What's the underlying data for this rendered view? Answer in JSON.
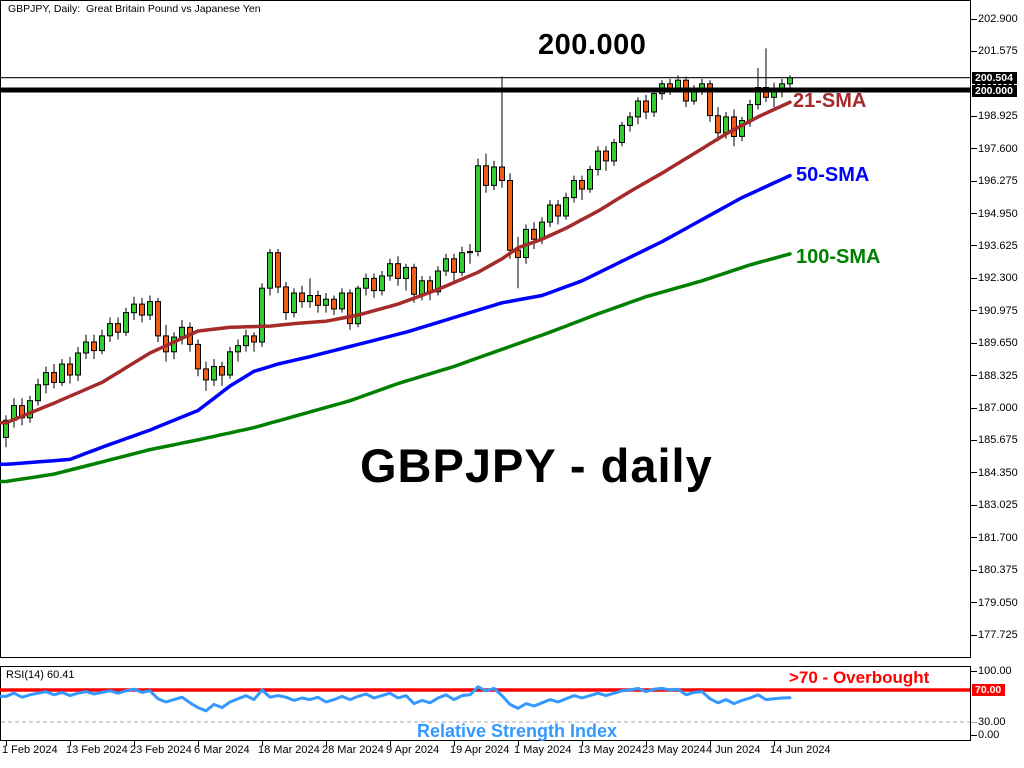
{
  "window": {
    "title": "GBPJPY, Daily:  Great Britain Pound vs Japanese Yen"
  },
  "annotations": {
    "level_label": "200.000",
    "symbol_label": "GBPJPY - daily",
    "sma21_label": "21-SMA",
    "sma50_label": "50-SMA",
    "sma100_label": "100-SMA",
    "overbought_label": ">70 - Overbought",
    "rsi_title_label": "Relative Strength Index"
  },
  "colors": {
    "bull": "#32CD32",
    "bear": "#EE5D18",
    "wick": "#000000",
    "sma21": "#A52A2A",
    "sma50": "#0000FF",
    "sma100": "#008000",
    "rsi_line": "#3399FF",
    "overbought": "#FF0000",
    "oversold_dash": "#AAAAAA",
    "level_line": "#000000",
    "current_price_line": "#222222",
    "price_tag_bg": "#000000",
    "rsi_tag_bg": "#FF0000"
  },
  "price_axis": {
    "current_price_tag": "200.504",
    "level_tag": "200.000",
    "ticks": [
      {
        "label": "202.900",
        "v": 202.9
      },
      {
        "label": "201.575",
        "v": 201.575
      },
      {
        "label": "198.925",
        "v": 198.925
      },
      {
        "label": "197.600",
        "v": 197.6
      },
      {
        "label": "196.275",
        "v": 196.275
      },
      {
        "label": "194.950",
        "v": 194.95
      },
      {
        "label": "193.625",
        "v": 193.625
      },
      {
        "label": "192.300",
        "v": 192.3
      },
      {
        "label": "190.975",
        "v": 190.975
      },
      {
        "label": "189.650",
        "v": 189.65
      },
      {
        "label": "188.325",
        "v": 188.325
      },
      {
        "label": "187.000",
        "v": 187.0
      },
      {
        "label": "185.675",
        "v": 185.675
      },
      {
        "label": "184.350",
        "v": 184.35
      },
      {
        "label": "183.025",
        "v": 183.025
      },
      {
        "label": "181.700",
        "v": 181.7
      },
      {
        "label": "180.375",
        "v": 180.375
      },
      {
        "label": "179.050",
        "v": 179.05
      },
      {
        "label": "177.725",
        "v": 177.725
      }
    ]
  },
  "time_axis": {
    "ticks": [
      {
        "label": "1 Feb 2024",
        "i": 0
      },
      {
        "label": "13 Feb 2024",
        "i": 8
      },
      {
        "label": "23 Feb 2024",
        "i": 16
      },
      {
        "label": "6 Mar 2024",
        "i": 24
      },
      {
        "label": "18 Mar 2024",
        "i": 32
      },
      {
        "label": "28 Mar 2024",
        "i": 40
      },
      {
        "label": "9 Apr 2024",
        "i": 48
      },
      {
        "label": "19 Apr 2024",
        "i": 56
      },
      {
        "label": "1 May 2024",
        "i": 64
      },
      {
        "label": "13 May 2024",
        "i": 72
      },
      {
        "label": "23 May 2024",
        "i": 80
      },
      {
        "label": "4 Jun 2024",
        "i": 88
      },
      {
        "label": "14 Jun 2024",
        "i": 96
      }
    ]
  },
  "rsi_panel": {
    "indicator_label": "RSI(14) 60.41",
    "tag": {
      "label": "70.00",
      "v": 70
    },
    "ticks": [
      {
        "label": "100.00",
        "v": 100
      },
      {
        "label": "30.00",
        "v": 30
      },
      {
        "label": "0.00",
        "v": 0
      }
    ],
    "overbought_level": 70,
    "oversold_level": 30
  },
  "chart_data": {
    "type": "candlestick",
    "title": "GBPJPY - daily",
    "symbol": "GBPJPY",
    "timeframe": "Daily",
    "ylim": [
      177.725,
      202.9
    ],
    "current_price": 200.504,
    "hline": 200.0,
    "candles": [
      [
        "Feb 1",
        185.8,
        186.7,
        185.4,
        186.5
      ],
      [
        "Feb 2",
        186.5,
        187.4,
        186.2,
        187.1
      ],
      [
        "Feb 5",
        187.1,
        187.4,
        186.3,
        186.6
      ],
      [
        "Feb 6",
        186.6,
        187.5,
        186.4,
        187.3
      ],
      [
        "Feb 7",
        187.3,
        188.2,
        187.1,
        187.95
      ],
      [
        "Feb 8",
        187.95,
        188.7,
        187.6,
        188.45
      ],
      [
        "Feb 9",
        188.45,
        188.8,
        187.8,
        188.05
      ],
      [
        "Feb 12",
        188.05,
        189.0,
        187.9,
        188.8
      ],
      [
        "Feb 13",
        188.8,
        189.1,
        188.0,
        188.35
      ],
      [
        "Feb 14",
        188.35,
        189.5,
        188.1,
        189.25
      ],
      [
        "Feb 15",
        189.25,
        190.0,
        189.0,
        189.7
      ],
      [
        "Feb 16",
        189.7,
        190.0,
        189.0,
        189.35
      ],
      [
        "Feb 19",
        189.35,
        190.2,
        189.2,
        189.95
      ],
      [
        "Feb 20",
        189.95,
        190.7,
        189.7,
        190.45
      ],
      [
        "Feb 21",
        190.45,
        190.7,
        189.8,
        190.1
      ],
      [
        "Feb 22",
        190.1,
        191.1,
        189.95,
        190.9
      ],
      [
        "Feb 23",
        190.9,
        191.55,
        190.6,
        191.25
      ],
      [
        "Feb 26",
        191.25,
        191.5,
        190.5,
        190.8
      ],
      [
        "Feb 27",
        190.8,
        191.6,
        190.6,
        191.35
      ],
      [
        "Feb 28",
        191.35,
        191.5,
        189.7,
        189.95
      ],
      [
        "Feb 29",
        189.95,
        190.4,
        188.9,
        189.3
      ],
      [
        "Mar 1",
        189.3,
        190.1,
        189.0,
        189.9
      ],
      [
        "Mar 4",
        189.9,
        190.6,
        189.6,
        190.3
      ],
      [
        "Mar 5",
        190.3,
        190.5,
        189.3,
        189.6
      ],
      [
        "Mar 6",
        189.6,
        189.8,
        188.3,
        188.6
      ],
      [
        "Mar 7",
        188.6,
        188.9,
        187.7,
        188.15
      ],
      [
        "Mar 8",
        188.15,
        189.0,
        187.9,
        188.7
      ],
      [
        "Mar 11",
        188.7,
        188.9,
        187.9,
        188.35
      ],
      [
        "Mar 12",
        188.35,
        189.5,
        188.2,
        189.3
      ],
      [
        "Mar 13",
        189.3,
        189.8,
        188.9,
        189.55
      ],
      [
        "Mar 14",
        189.55,
        190.2,
        189.3,
        189.95
      ],
      [
        "Mar 15",
        189.95,
        190.1,
        189.3,
        189.7
      ],
      [
        "Mar 18",
        189.7,
        192.1,
        189.5,
        191.9
      ],
      [
        "Mar 19",
        191.9,
        193.5,
        191.6,
        193.35
      ],
      [
        "Mar 20",
        193.35,
        193.5,
        191.7,
        191.95
      ],
      [
        "Mar 21",
        191.95,
        192.15,
        190.6,
        190.9
      ],
      [
        "Mar 22",
        190.9,
        191.9,
        190.7,
        191.7
      ],
      [
        "Mar 25",
        191.7,
        192.0,
        191.1,
        191.35
      ],
      [
        "Mar 26",
        191.35,
        192.3,
        191.1,
        191.6
      ],
      [
        "Mar 27",
        191.6,
        191.8,
        190.9,
        191.2
      ],
      [
        "Mar 28",
        191.2,
        191.7,
        190.9,
        191.45
      ],
      [
        "Mar 29",
        191.45,
        191.6,
        190.8,
        191.05
      ],
      [
        "Apr 1",
        191.05,
        191.9,
        190.9,
        191.7
      ],
      [
        "Apr 2",
        191.7,
        191.85,
        190.2,
        190.45
      ],
      [
        "Apr 3",
        190.45,
        192.0,
        190.3,
        191.9
      ],
      [
        "Apr 4",
        191.9,
        192.5,
        191.6,
        192.3
      ],
      [
        "Apr 5",
        192.3,
        192.5,
        191.5,
        191.8
      ],
      [
        "Apr 8",
        191.8,
        192.6,
        191.6,
        192.4
      ],
      [
        "Apr 9",
        192.4,
        193.1,
        192.2,
        192.9
      ],
      [
        "Apr 10",
        192.9,
        193.2,
        192.0,
        192.3
      ],
      [
        "Apr 11",
        192.3,
        192.9,
        191.8,
        192.75
      ],
      [
        "Apr 12",
        192.75,
        192.9,
        191.3,
        191.65
      ],
      [
        "Apr 15",
        191.65,
        192.4,
        191.4,
        192.2
      ],
      [
        "Apr 16",
        192.2,
        192.4,
        191.4,
        191.75
      ],
      [
        "Apr 17",
        191.75,
        192.8,
        191.6,
        192.6
      ],
      [
        "Apr 18",
        192.6,
        193.3,
        192.4,
        193.1
      ],
      [
        "Apr 19",
        193.1,
        193.3,
        192.2,
        192.55
      ],
      [
        "Apr 22",
        192.55,
        193.6,
        192.4,
        193.35
      ],
      [
        "Apr 23",
        193.35,
        193.7,
        192.9,
        193.4
      ],
      [
        "Apr 24",
        193.4,
        197.2,
        193.2,
        196.9
      ],
      [
        "Apr 25",
        196.9,
        197.4,
        195.8,
        196.1
      ],
      [
        "Apr 26",
        196.1,
        197.1,
        195.9,
        196.85
      ],
      [
        "Apr 29",
        196.85,
        200.55,
        196.0,
        196.3
      ],
      [
        "Apr 30",
        196.3,
        196.6,
        193.1,
        193.45
      ],
      [
        "May 1",
        193.45,
        194.0,
        191.9,
        193.15
      ],
      [
        "May 2",
        193.15,
        194.5,
        192.9,
        194.3
      ],
      [
        "May 3",
        194.3,
        194.6,
        193.5,
        193.9
      ],
      [
        "May 6",
        193.9,
        194.8,
        193.7,
        194.6
      ],
      [
        "May 7",
        194.6,
        195.5,
        194.4,
        195.3
      ],
      [
        "May 8",
        195.3,
        195.5,
        194.5,
        194.85
      ],
      [
        "May 9",
        194.85,
        195.8,
        194.7,
        195.6
      ],
      [
        "May 10",
        195.6,
        196.5,
        195.4,
        196.3
      ],
      [
        "May 13",
        196.3,
        196.5,
        195.5,
        195.95
      ],
      [
        "May 14",
        195.95,
        196.9,
        195.8,
        196.75
      ],
      [
        "May 15",
        196.75,
        197.7,
        196.5,
        197.5
      ],
      [
        "May 16",
        197.5,
        197.7,
        196.7,
        197.1
      ],
      [
        "May 17",
        197.1,
        198.0,
        196.9,
        197.85
      ],
      [
        "May 20",
        197.85,
        198.7,
        197.7,
        198.55
      ],
      [
        "May 21",
        198.55,
        199.1,
        198.3,
        198.9
      ],
      [
        "May 22",
        198.9,
        199.7,
        198.6,
        199.55
      ],
      [
        "May 23",
        199.55,
        199.8,
        198.8,
        199.1
      ],
      [
        "May 24",
        199.1,
        200.0,
        198.9,
        199.85
      ],
      [
        "May 27",
        199.85,
        200.4,
        199.6,
        200.25
      ],
      [
        "May 28",
        200.25,
        200.45,
        199.8,
        200.05
      ],
      [
        "May 29",
        200.05,
        200.6,
        199.9,
        200.4
      ],
      [
        "May 30",
        200.4,
        200.55,
        199.3,
        199.55
      ],
      [
        "May 31",
        199.55,
        200.2,
        199.4,
        200.0
      ],
      [
        "Jun 3",
        200.0,
        200.45,
        199.8,
        200.25
      ],
      [
        "Jun 4",
        200.25,
        200.4,
        198.7,
        198.95
      ],
      [
        "Jun 5",
        198.95,
        199.3,
        197.9,
        198.25
      ],
      [
        "Jun 6",
        198.25,
        199.1,
        198.0,
        198.9
      ],
      [
        "Jun 7",
        198.9,
        199.2,
        197.7,
        198.1
      ],
      [
        "Jun 10",
        198.1,
        198.9,
        197.9,
        198.75
      ],
      [
        "Jun 11",
        198.75,
        199.6,
        198.5,
        199.4
      ],
      [
        "Jun 12",
        199.4,
        200.9,
        199.2,
        200.1
      ],
      [
        "Jun 13",
        200.1,
        201.7,
        199.5,
        199.7
      ],
      [
        "Jun 14",
        199.7,
        200.3,
        199.3,
        199.95
      ],
      [
        "Jun 17",
        199.95,
        200.45,
        199.7,
        200.25
      ],
      [
        "Jun 18",
        200.25,
        200.6,
        199.9,
        200.504
      ]
    ],
    "sma21": [
      [
        0,
        186.4
      ],
      [
        6,
        187.2
      ],
      [
        12,
        188.05
      ],
      [
        18,
        189.25
      ],
      [
        24,
        190.15
      ],
      [
        28,
        190.3
      ],
      [
        33,
        190.35
      ],
      [
        36,
        190.45
      ],
      [
        40,
        190.55
      ],
      [
        44,
        190.8
      ],
      [
        49,
        191.25
      ],
      [
        54,
        191.85
      ],
      [
        59,
        192.55
      ],
      [
        62,
        193.1
      ],
      [
        64,
        193.55
      ],
      [
        67,
        193.9
      ],
      [
        70,
        194.35
      ],
      [
        74,
        195.05
      ],
      [
        78,
        195.85
      ],
      [
        82,
        196.6
      ],
      [
        86,
        197.4
      ],
      [
        90,
        198.2
      ],
      [
        94,
        198.9
      ],
      [
        98,
        199.5
      ]
    ],
    "sma50": [
      [
        0,
        184.7
      ],
      [
        8,
        184.9
      ],
      [
        12,
        185.4
      ],
      [
        18,
        186.1
      ],
      [
        24,
        186.9
      ],
      [
        28,
        187.9
      ],
      [
        31,
        188.5
      ],
      [
        34,
        188.8
      ],
      [
        38,
        189.1
      ],
      [
        44,
        189.6
      ],
      [
        50,
        190.1
      ],
      [
        56,
        190.7
      ],
      [
        62,
        191.3
      ],
      [
        67,
        191.6
      ],
      [
        72,
        192.2
      ],
      [
        77,
        193.0
      ],
      [
        82,
        193.8
      ],
      [
        87,
        194.7
      ],
      [
        92,
        195.6
      ],
      [
        98,
        196.5
      ]
    ],
    "sma100": [
      [
        0,
        184.0
      ],
      [
        6,
        184.3
      ],
      [
        12,
        184.8
      ],
      [
        18,
        185.3
      ],
      [
        24,
        185.7
      ],
      [
        31,
        186.2
      ],
      [
        37,
        186.75
      ],
      [
        43,
        187.3
      ],
      [
        49,
        188.0
      ],
      [
        56,
        188.7
      ],
      [
        62,
        189.4
      ],
      [
        68,
        190.1
      ],
      [
        74,
        190.85
      ],
      [
        80,
        191.55
      ],
      [
        87,
        192.2
      ],
      [
        93,
        192.85
      ],
      [
        98,
        193.3
      ]
    ],
    "rsi": {
      "period": 14,
      "current": 60.41,
      "overbought": 70,
      "oversold": 30,
      "values": [
        62,
        66,
        61,
        64,
        66,
        68,
        64,
        67,
        63,
        66,
        68,
        65,
        67,
        69,
        66,
        69,
        71,
        67,
        69,
        59,
        55,
        58,
        61,
        54,
        48,
        44,
        52,
        48,
        55,
        59,
        63,
        58,
        70,
        61,
        63,
        61,
        57,
        60,
        58,
        61,
        55,
        58,
        62,
        58,
        62,
        65,
        60,
        63,
        66,
        60,
        63,
        53,
        57,
        54,
        60,
        64,
        58,
        63,
        64,
        74,
        69,
        72,
        63,
        52,
        47,
        53,
        50,
        54,
        58,
        55,
        59,
        63,
        60,
        63,
        66,
        63,
        66,
        69,
        70,
        72,
        68,
        71,
        72,
        70,
        71,
        64,
        67,
        68,
        59,
        54,
        58,
        53,
        57,
        60,
        64,
        58,
        59,
        60,
        60.41
      ]
    }
  }
}
